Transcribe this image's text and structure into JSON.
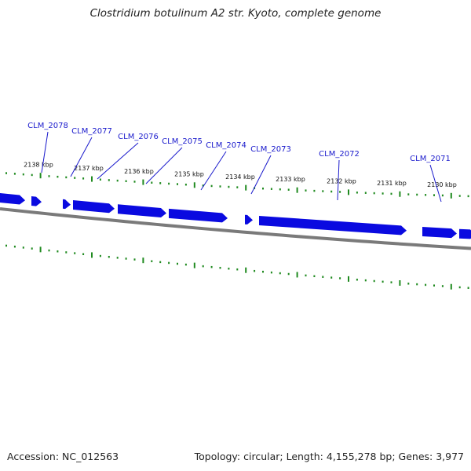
{
  "title": "Clostridium botulinum A2 str. Kyoto, complete genome",
  "footer": {
    "accession": "Accession: NC_012563",
    "summary": "Topology: circular; Length: 4,155,278 bp; Genes: 3,977"
  },
  "colors": {
    "gene_fill": "#0a0ae0",
    "gene_text": "#1a1acc",
    "backbone": "#7a7a7a",
    "ticks": "#1f8a1f",
    "kbp_text": "#111111"
  },
  "kbp_ticks": [
    "2138 kbp",
    "2137 kbp",
    "2136 kbp",
    "2135 kbp",
    "2134 kbp",
    "2133 kbp",
    "2132 kbp",
    "2131 kbp",
    "2130 kbp"
  ],
  "genes": [
    "CLM_2078",
    "CLM_2077",
    "CLM_2076",
    "CLM_2075",
    "CLM_2074",
    "CLM_2073",
    "CLM_2072",
    "CLM_2071"
  ]
}
